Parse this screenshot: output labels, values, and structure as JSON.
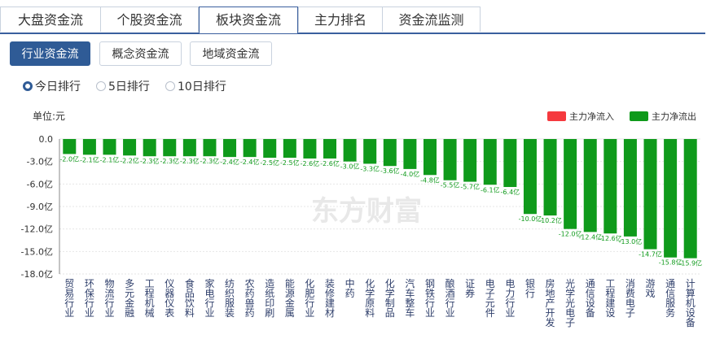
{
  "tabs": [
    {
      "label": "大盘资金流",
      "active": false
    },
    {
      "label": "个股资金流",
      "active": false
    },
    {
      "label": "板块资金流",
      "active": true
    },
    {
      "label": "主力排名",
      "active": false
    },
    {
      "label": "资金流监测",
      "active": false
    }
  ],
  "subtabs": [
    {
      "label": "行业资金流",
      "active": true
    },
    {
      "label": "概念资金流",
      "active": false
    },
    {
      "label": "地域资金流",
      "active": false
    }
  ],
  "radios": [
    {
      "label": "今日排行",
      "checked": true
    },
    {
      "label": "5日排行",
      "checked": false
    },
    {
      "label": "10日排行",
      "checked": false
    }
  ],
  "watermark": "东方财富",
  "colors": {
    "inflow": "#f5393e",
    "outflow": "#0f9a1b",
    "accent": "#2f5b96"
  },
  "chart_data": {
    "type": "bar",
    "unit_label": "单位:元",
    "legend": [
      {
        "name": "主力净流入",
        "color": "#f5393e"
      },
      {
        "name": "主力净流出",
        "color": "#0f9a1b"
      }
    ],
    "legend_position": "top-right",
    "ylim": [
      -18.0,
      0.0
    ],
    "yticks": [
      "0.0",
      "-3.0亿",
      "-6.0亿",
      "-9.0亿",
      "-12.0亿",
      "-15.0亿",
      "-18.0亿"
    ],
    "ytick_values": [
      0,
      -3,
      -6,
      -9,
      -12,
      -15,
      -18
    ],
    "grid": true,
    "categories": [
      "贸易行业",
      "环保行业",
      "物流行业",
      "多元金融",
      "工程机械",
      "仪器仪表",
      "食品饮料",
      "家电行业",
      "纺织服装",
      "农药兽药",
      "造纸印刷",
      "能源金属",
      "化肥行业",
      "装修建材",
      "中药",
      "化学原料",
      "化学制品",
      "汽车整车",
      "钢铁行业",
      "酿酒行业",
      "证券",
      "电子元件",
      "电力行业",
      "银行",
      "房地产开发",
      "光学光电子",
      "通信设备",
      "工程建设",
      "消费电子",
      "游戏",
      "通信服务",
      "计算机设备"
    ],
    "values": [
      -2.0,
      -2.1,
      -2.1,
      -2.2,
      -2.3,
      -2.3,
      -2.3,
      -2.3,
      -2.4,
      -2.4,
      -2.5,
      -2.5,
      -2.6,
      -2.6,
      -3.0,
      -3.3,
      -3.6,
      -4.0,
      -4.8,
      -5.5,
      -5.7,
      -6.1,
      -6.4,
      -10.0,
      -10.2,
      -12.0,
      -12.4,
      -12.6,
      -13.0,
      -14.7,
      -15.8,
      -15.9
    ],
    "value_labels": [
      "-2.0亿",
      "-2.1亿",
      "-2.1亿",
      "-2.2亿",
      "-2.3亿",
      "-2.3亿",
      "-2.3亿",
      "-2.3亿",
      "-2.4亿",
      "-2.4亿",
      "-2.5亿",
      "-2.5亿",
      "-2.6亿",
      "-2.6亿",
      "-3.0亿",
      "-3.3亿",
      "-3.6亿",
      "-4.0亿",
      "-4.8亿",
      "-5.5亿",
      "-5.7亿",
      "-6.1亿",
      "-6.4亿",
      "-10.0亿",
      "-10.2亿",
      "-12.0亿",
      "-12.4亿",
      "-12.6亿",
      "-13.0亿",
      "-14.7亿",
      "-15.8亿",
      "-15.9亿"
    ]
  }
}
